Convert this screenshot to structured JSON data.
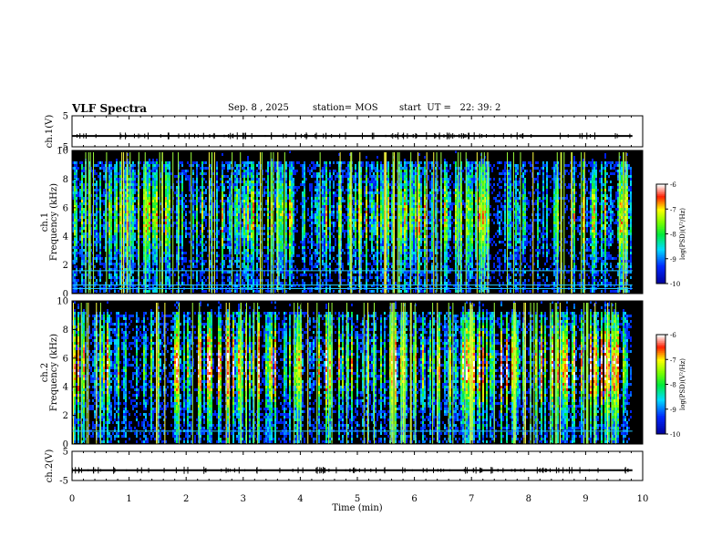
{
  "header": {
    "title": "VLF Spectra",
    "date": "Sep. 8 , 2025",
    "station": "station= MOS",
    "start": "start  UT =   22: 39: 2"
  },
  "colorbar": {
    "label": "log(PSD)(V²/Hz)",
    "ticks": [
      "-6",
      "-7",
      "-8",
      "-9",
      "-10"
    ]
  },
  "chart_data": [
    {
      "type": "line",
      "panel": "waveform-ch1",
      "ylabel": "ch.1(V)",
      "ylim": [
        -5,
        5
      ],
      "y_ticks": [
        "5",
        "-5"
      ],
      "level": -1.5,
      "x_range": [
        0,
        9.82
      ]
    },
    {
      "type": "heatmap",
      "panel": "spectrogram-ch1",
      "ylabel": "ch.1\nFrequency (kHz)",
      "ylim": [
        0,
        10
      ],
      "y_ticks": [
        "10",
        "8",
        "6",
        "4",
        "2",
        "0"
      ],
      "zlim": [
        -10,
        -6
      ],
      "zlabel": "log(PSD)(V²/Hz)",
      "x_range": [
        0,
        9.82
      ],
      "lines_khz": [
        1.6,
        0.6,
        0.35
      ]
    },
    {
      "type": "heatmap",
      "panel": "spectrogram-ch2",
      "ylabel": "ch.2\nFrequency (kHz)",
      "ylim": [
        0,
        10
      ],
      "y_ticks": [
        "10",
        "8",
        "6",
        "4",
        "2",
        "0"
      ],
      "zlim": [
        -10,
        -6
      ],
      "zlabel": "log(PSD)(V²/Hz)",
      "x_range": [
        0,
        9.82
      ],
      "lines_khz": [
        0.9
      ]
    },
    {
      "type": "line",
      "panel": "waveform-ch2",
      "ylabel": "ch.2(V)",
      "ylim": [
        -5,
        5
      ],
      "y_ticks": [
        "5",
        "-5"
      ],
      "level": -1.5,
      "x_range": [
        0,
        9.82
      ]
    }
  ],
  "x_axis": {
    "label": "Time  (min)",
    "ticks": [
      "0",
      "1",
      "2",
      "3",
      "4",
      "5",
      "6",
      "7",
      "8",
      "9",
      "10"
    ],
    "range": [
      0,
      10
    ]
  }
}
